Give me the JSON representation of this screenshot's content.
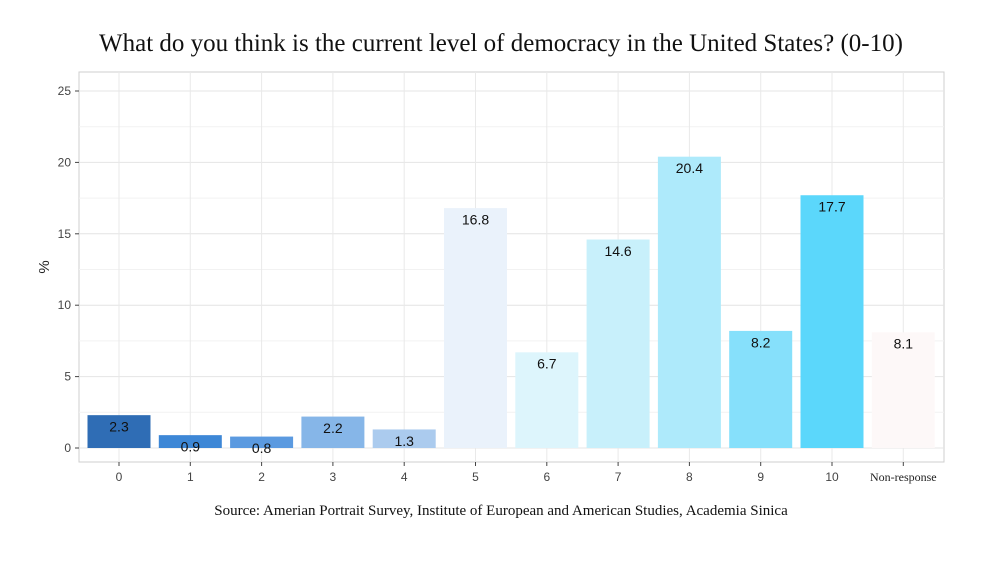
{
  "chart_data": {
    "type": "bar",
    "title": "What do you think is the current level of democracy in the United States? (0-10)",
    "xlabel": "",
    "ylabel": "%",
    "categories": [
      "0",
      "1",
      "2",
      "3",
      "4",
      "5",
      "6",
      "7",
      "8",
      "9",
      "10",
      "Non-response"
    ],
    "values": [
      2.3,
      0.9,
      0.8,
      2.2,
      1.3,
      16.8,
      6.7,
      14.6,
      20.4,
      8.2,
      17.7,
      8.1
    ],
    "data_labels": [
      "2.3",
      "0.9",
      "0.8",
      "2.2",
      "1.3",
      "16.8",
      "6.7",
      "14.6",
      "20.4",
      "8.2",
      "17.7",
      "8.1"
    ],
    "colors": [
      "#2f6db5",
      "#3d87d6",
      "#5b9ae0",
      "#86b6e8",
      "#abcbee",
      "#eaf2fb",
      "#ddf5fc",
      "#c8f0fb",
      "#aeeafb",
      "#86e0fb",
      "#5bd7fb",
      "#fdf8f8"
    ],
    "ylim": [
      0,
      25
    ],
    "yticks": [
      0,
      5,
      10,
      15,
      20,
      25
    ],
    "grid": true,
    "legend": "none"
  },
  "source": "Source: Amerian Portrait Survey, Institute of European and American Studies, Academia Sinica"
}
